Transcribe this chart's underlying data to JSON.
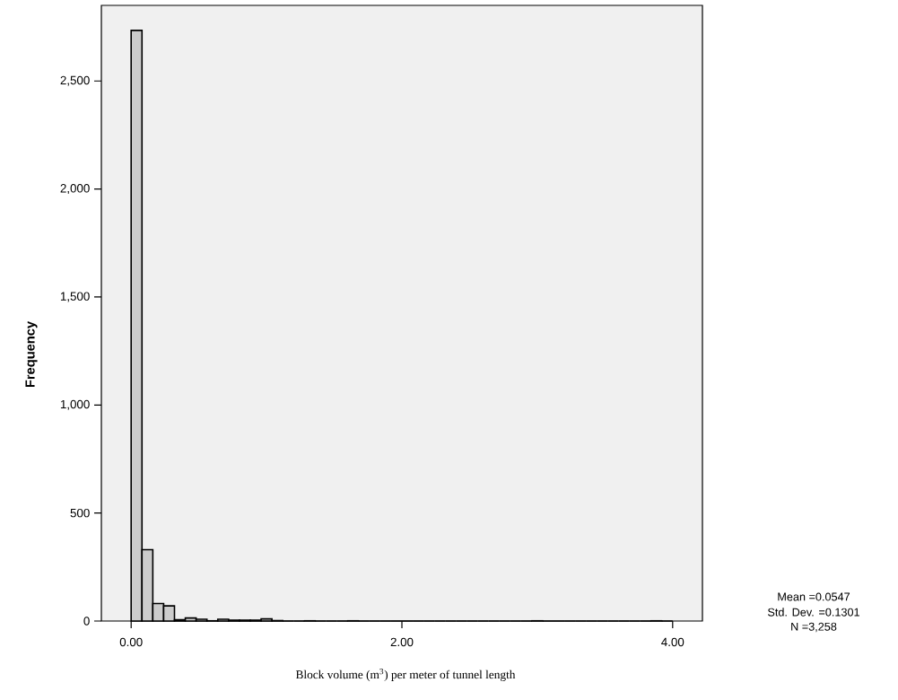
{
  "chart_data": {
    "type": "histogram",
    "xlabel": "Block volume (m$^{3}$) per meter of tunnel length",
    "ylabel": "Frequency",
    "bins": [
      0.0,
      0.08,
      0.16,
      0.24,
      0.32,
      0.4,
      0.48,
      0.56,
      0.64,
      0.72,
      0.8,
      0.88,
      0.96,
      1.04,
      1.12,
      1.2,
      1.28,
      1.36,
      1.44,
      1.52,
      1.6,
      1.68,
      1.76,
      1.84,
      1.92,
      2.0,
      2.08,
      2.16,
      2.24,
      2.32,
      2.4,
      2.48,
      2.56,
      2.64,
      2.72,
      2.8,
      2.88,
      2.96,
      3.04,
      3.12,
      3.2,
      3.28,
      3.36,
      3.44,
      3.52,
      3.6,
      3.68,
      3.76,
      3.84,
      3.92,
      4.0
    ],
    "values": [
      2734,
      330,
      81,
      70,
      6,
      14,
      8,
      1,
      8,
      4,
      4,
      4,
      10,
      2,
      0,
      0,
      1,
      0,
      0,
      0,
      1,
      0,
      0,
      0,
      0,
      0,
      0,
      0,
      0,
      0,
      0,
      0,
      0,
      0,
      0,
      0,
      0,
      1,
      0,
      0,
      0,
      0,
      0,
      0,
      0,
      0,
      0,
      0,
      1,
      0
    ],
    "color": "#cccccc",
    "xlim": [
      -0.22,
      4.22
    ],
    "ylim": [
      0,
      2850
    ],
    "xticks": [
      {
        "value": 0,
        "label": "0.00"
      },
      {
        "value": 2,
        "label": "2.00"
      },
      {
        "value": 4,
        "label": "4.00"
      }
    ],
    "yticks": [
      0,
      {
        "value": 500,
        "label": "500"
      },
      {
        "value": 1000,
        "label": "1,000"
      },
      {
        "value": 1500,
        "label": "1,500"
      },
      {
        "value": 2000,
        "label": "2,000"
      },
      {
        "value": 2500,
        "label": "2,500"
      }
    ],
    "annotations": [
      "Mean =0.0547",
      "Std. Dev. =0.1301",
      "N =3,258"
    ]
  }
}
